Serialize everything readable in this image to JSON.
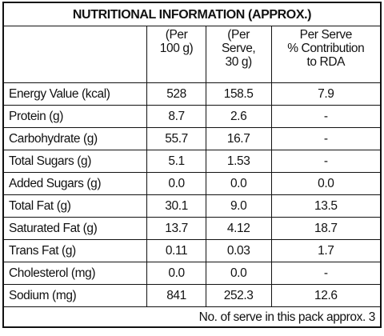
{
  "title": "NUTRITIONAL INFORMATION (APPROX.)",
  "table": {
    "header": [
      "",
      "(Per\n100 g)",
      "(Per\nServe,\n30 g)",
      "Per Serve\n% Contribution\nto RDA"
    ],
    "rows": [
      [
        "Energy Value (kcal)",
        "528",
        "158.5",
        "7.9"
      ],
      [
        "Protein (g)",
        "8.7",
        "2.6",
        "-"
      ],
      [
        "Carbohydrate (g)",
        "55.7",
        "16.7",
        "-"
      ],
      [
        "Total Sugars (g)",
        "5.1",
        "1.53",
        "-"
      ],
      [
        "Added Sugars (g)",
        "0.0",
        "0.0",
        "0.0"
      ],
      [
        "Total Fat (g)",
        "30.1",
        "9.0",
        "13.5"
      ],
      [
        "Saturated Fat (g)",
        "13.7",
        "4.12",
        "18.7"
      ],
      [
        "Trans Fat (g)",
        "0.11",
        "0.03",
        "1.7"
      ],
      [
        "Cholesterol (mg)",
        "0.0",
        "0.0",
        "-"
      ],
      [
        "Sodium (mg)",
        "841",
        "252.3",
        "12.6"
      ]
    ]
  },
  "footer": "No. of serve in this pack approx. 3"
}
